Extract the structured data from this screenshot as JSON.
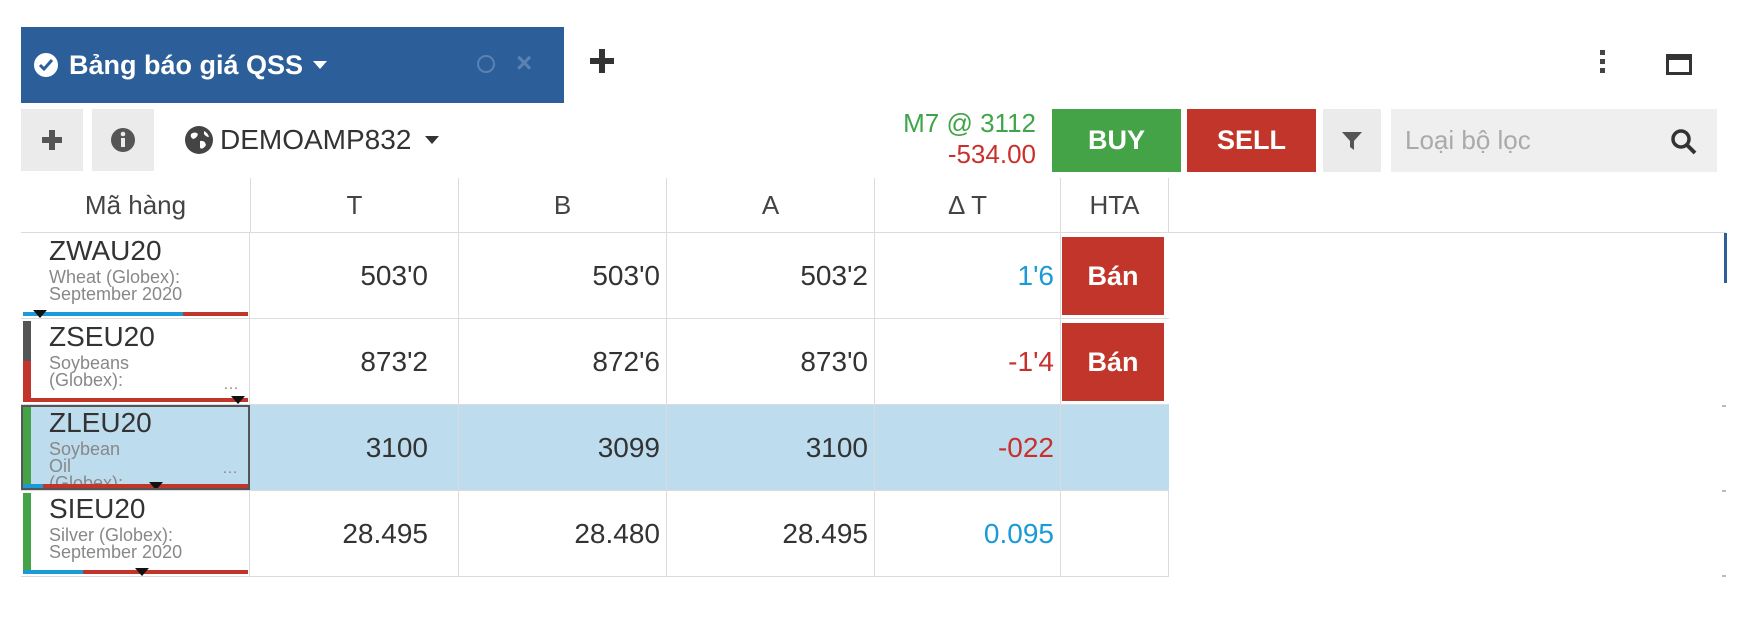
{
  "tab": {
    "title": "Bảng báo giá QSS"
  },
  "toolbar": {
    "account": "DEMOAMP832",
    "position": "M7 @ 3112",
    "pnl": "-534.00",
    "buy_label": "BUY",
    "sell_label": "SELL",
    "filter_placeholder": "Loại bộ lọc"
  },
  "columns": [
    "Mã hàng",
    "T",
    "B",
    "A",
    "Δ T",
    "HTA"
  ],
  "rows": [
    {
      "code": "ZWAU20",
      "desc": "Wheat (Globex): September 2020",
      "t": "503'0",
      "b": "503'0",
      "a": "503'2",
      "chg": "1'6",
      "chg_dir": "up",
      "action": "Bán"
    },
    {
      "code": "ZSEU20",
      "desc": "Soybeans (Globex):",
      "t": "873'2",
      "b": "872'6",
      "a": "873'0",
      "chg": "-1'4",
      "chg_dir": "down",
      "action": "Bán"
    },
    {
      "code": "ZLEU20",
      "desc": "Soybean Oil (Globex):",
      "t": "3100",
      "b": "3099",
      "a": "3100",
      "chg": "-022",
      "chg_dir": "down",
      "action": ""
    },
    {
      "code": "SIEU20",
      "desc": "Silver (Globex): September 2020",
      "t": "28.495",
      "b": "28.480",
      "a": "28.495",
      "chg": "0.095",
      "chg_dir": "up",
      "action": ""
    }
  ],
  "colors": {
    "tab": "#2c5f99",
    "buy": "#45a347",
    "sell": "#c2352a",
    "selected_row": "#bddcee",
    "up": "#1a9bd7",
    "down": "#c9302c"
  }
}
